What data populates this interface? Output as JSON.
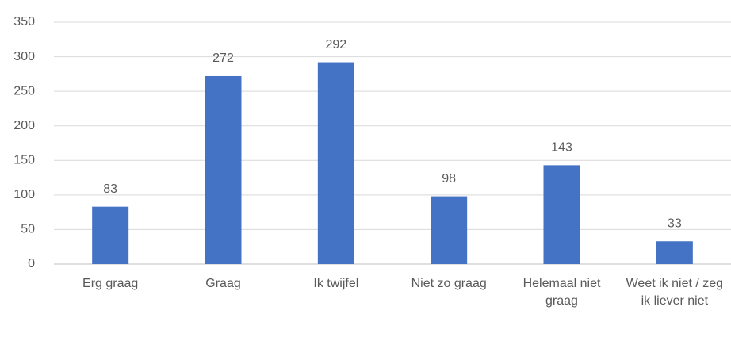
{
  "chart_data": {
    "type": "bar",
    "categories": [
      "Erg graag",
      "Graag",
      "Ik twijfel",
      "Niet zo graag",
      "Helemaal niet graag",
      "Weet ik niet / zeg ik liever niet"
    ],
    "values": [
      83,
      272,
      292,
      98,
      143,
      33
    ],
    "color": "#4472c4",
    "ylim": [
      0,
      350
    ],
    "yticks": [
      0,
      50,
      100,
      150,
      200,
      250,
      300,
      350
    ],
    "grid": true
  }
}
